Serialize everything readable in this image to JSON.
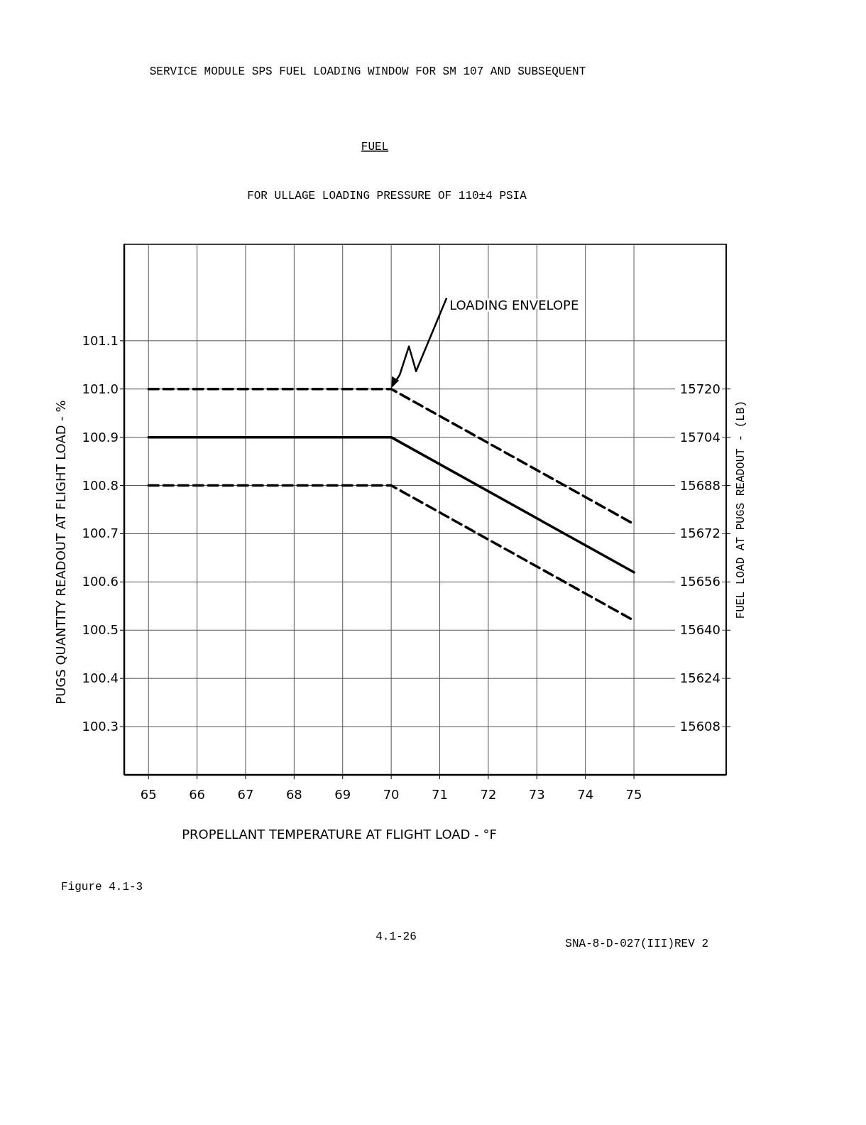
{
  "chart_data": {
    "type": "line",
    "title": "SERVICE MODULE SPS FUEL LOADING WINDOW FOR SM 107 AND SUBSEQUENT",
    "subtitle": "FUEL",
    "xlabel": "PROPELLANT TEMPERATURE AT FLIGHT LOAD - °F",
    "ylabel": "PUGS QUANTITY READOUT AT FLIGHT LOAD - %",
    "y2label": "FUEL LOAD AT PUGS READOUT - (LB)",
    "x": [
      65,
      70,
      75
    ],
    "series": [
      {
        "color": "#000000",
        "values": [
          101.0,
          101.0,
          100.72
        ],
        "line_style": "dashed"
      },
      {
        "color": "#000000",
        "values": [
          100.9,
          100.9,
          100.62
        ],
        "line_style": "solid"
      },
      {
        "color": "#000000",
        "values": [
          100.8,
          100.8,
          100.52
        ],
        "line_style": "dashed"
      }
    ],
    "xlim": [
      64.5,
      76.9
    ],
    "xticks": [
      65,
      66,
      67,
      68,
      69,
      70,
      71,
      72,
      73,
      74,
      75
    ],
    "ylim": [
      100.2,
      101.3
    ],
    "yticks": [
      {
        "value": 100.3,
        "label": "100.3"
      },
      {
        "value": 100.4,
        "label": "100.4"
      },
      {
        "value": 100.5,
        "label": "100.5"
      },
      {
        "value": 100.6,
        "label": "100.6"
      },
      {
        "value": 100.7,
        "label": "100.7"
      },
      {
        "value": 100.8,
        "label": "100.8"
      },
      {
        "value": 100.9,
        "label": "100.9"
      },
      {
        "value": 101.0,
        "label": "101.0"
      },
      {
        "value": 101.1,
        "label": "101.1"
      }
    ],
    "y2lim": [
      15592,
      15768
    ],
    "y2ticks": [
      15608,
      15624,
      15640,
      15656,
      15672,
      15688,
      15704,
      15720
    ],
    "grid": true,
    "marker": "none",
    "annotations": [
      {
        "text": "LOADING ENVELOPE",
        "x": 70,
        "y": 101.0
      },
      "FOR ULLAGE LOADING PRESSURE OF 110±4 PSIA",
      "Figure 4.1-3",
      "4.1-26",
      "SNA-8-D-027(III)REV 2"
    ]
  }
}
